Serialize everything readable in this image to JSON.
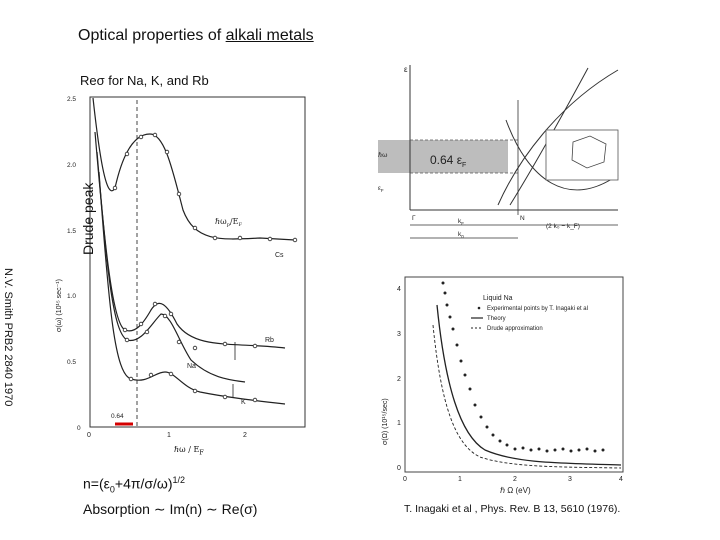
{
  "title": {
    "prefix": "Optical properties of ",
    "link": "alkali metals"
  },
  "subtitle": "Reσ for Na, K, and Rb",
  "side_label": "Drude peak",
  "citation_left": "N.V. Smith PRB2 2840 1970",
  "formula": {
    "line1_pre": "n=(ε",
    "line1_sub": "0",
    "line1_mid": "+4π/σ/ω)",
    "line1_sup": "1/2",
    "line2": "Absorption ∼ Im(n) ∼ Re(σ)"
  },
  "citation_right": "T. Inagaki et al , Phys. Rev. B 13, 5610 (1976).",
  "colors": {
    "red_marker": "#d40000",
    "band_shade": "#bdbdbd"
  },
  "left_plot": {
    "y_axis_label": "σ(ω) (10¹⁵ sec⁻¹)",
    "x_axis_label": "ℏω / E",
    "x_axis_sub": "F",
    "y_ticks": [
      "2.5",
      "2.0",
      "1.5",
      "1.0",
      "0.5",
      "0"
    ],
    "x_ticks": [
      "0",
      "1",
      "2"
    ],
    "marker_label": "0.64",
    "annotation": "ℏω",
    "annotation_sub": "p",
    "annotation_tail": "/E",
    "annotation_sub2": "F",
    "curve_labels": [
      "Cs",
      "Rb",
      "Na",
      "K"
    ]
  },
  "band_diagram": {
    "energy_label": "ε",
    "fermi_label": "ε",
    "fermi_sub": "F",
    "homega_label": "ℏω",
    "value_label": "0.64 ε",
    "value_sub": "F",
    "gamma": "Γ",
    "n_point": "N",
    "kf": "k",
    "kf_sub": "F",
    "k0": "k",
    "k0_sub": "0",
    "right_expr": "(2 k₀ − k_F)"
  },
  "right_plot": {
    "legend_title": "Liquid Na",
    "legend_items": [
      "Experimental points by T. Inagaki et al",
      "Theory",
      "Drude approximation"
    ],
    "y_axis_label": "σ(Ω) (10¹⁵/sec)",
    "x_axis_label": "ℏ Ω (eV)",
    "y_ticks": [
      "4",
      "3",
      "2",
      "1",
      "0"
    ],
    "x_ticks": [
      "0",
      "1",
      "2",
      "3",
      "4"
    ]
  }
}
